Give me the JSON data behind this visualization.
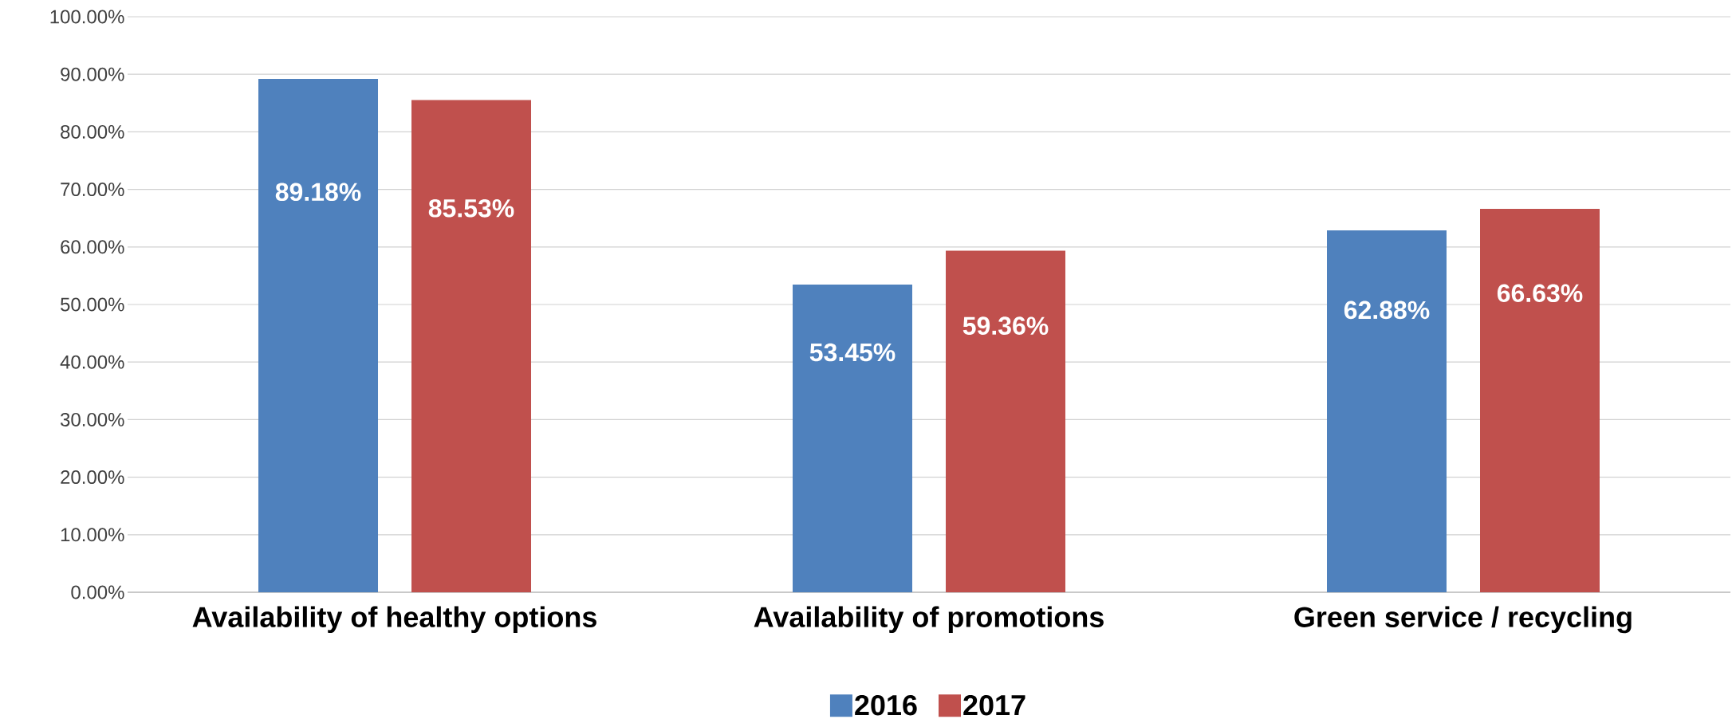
{
  "chart_data": {
    "type": "bar",
    "categories": [
      "Availability of healthy options",
      "Availability of promotions",
      "Green service / recycling"
    ],
    "series": [
      {
        "name": "2016",
        "color": "#4f81bd",
        "values": [
          89.18,
          53.45,
          62.88
        ],
        "value_labels": [
          "89.18%",
          "53.45%",
          "62.88%"
        ]
      },
      {
        "name": "2017",
        "color": "#c0504d",
        "values": [
          85.53,
          59.36,
          66.63
        ],
        "value_labels": [
          "85.53%",
          "59.36%",
          "66.63%"
        ]
      }
    ],
    "ylim": [
      0,
      100
    ],
    "yticks": [
      {
        "value": 0,
        "label": "0.00%"
      },
      {
        "value": 10,
        "label": "10.00%"
      },
      {
        "value": 20,
        "label": "20.00%"
      },
      {
        "value": 30,
        "label": "30.00%"
      },
      {
        "value": 40,
        "label": "40.00%"
      },
      {
        "value": 50,
        "label": "50.00%"
      },
      {
        "value": 60,
        "label": "60.00%"
      },
      {
        "value": 70,
        "label": "70.00%"
      },
      {
        "value": 80,
        "label": "80.00%"
      },
      {
        "value": 90,
        "label": "90.00%"
      },
      {
        "value": 100,
        "label": "100.00%"
      }
    ],
    "grid": "y",
    "legend": "bottom"
  }
}
